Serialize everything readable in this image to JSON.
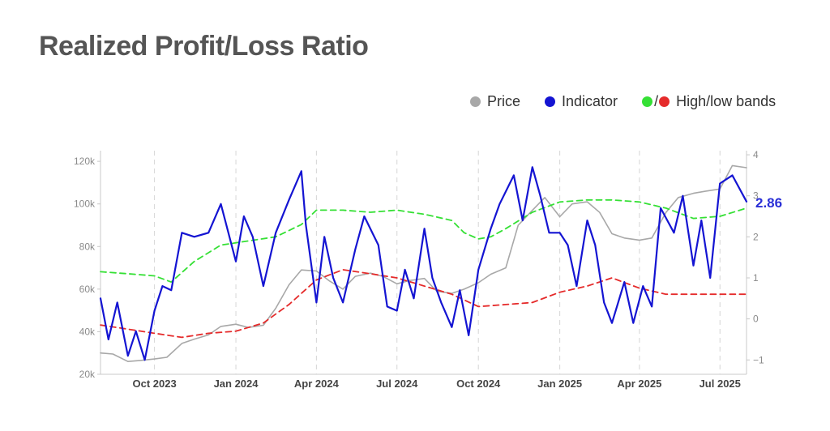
{
  "title": "Realized Profit/Loss Ratio",
  "legend": {
    "price_label": "Price",
    "indicator_label": "Indicator",
    "bands_label": "High/low bands"
  },
  "colors": {
    "price": "#a8a8a8",
    "indicator": "#1414d2",
    "high_band": "#35e035",
    "low_band": "#e52b2b",
    "last_value": "#2a2fd6"
  },
  "chart_data": {
    "type": "line",
    "title": "Realized Profit/Loss Ratio",
    "x_range": [
      "2023-08-01",
      "2025-07-31"
    ],
    "x_ticks": [
      {
        "label": "Oct 2023",
        "date": "2023-10-01"
      },
      {
        "label": "Jan 2024",
        "date": "2024-01-01"
      },
      {
        "label": "Apr 2024",
        "date": "2024-04-01"
      },
      {
        "label": "Jul 2024",
        "date": "2024-07-01"
      },
      {
        "label": "Oct 2024",
        "date": "2024-10-01"
      },
      {
        "label": "Jan 2025",
        "date": "2025-01-01"
      },
      {
        "label": "Apr 2025",
        "date": "2025-04-01"
      },
      {
        "label": "Jul 2025",
        "date": "2025-07-01"
      }
    ],
    "y_left": {
      "ticks": [
        "20k",
        "40k",
        "60k",
        "80k",
        "100k",
        "120k"
      ],
      "values": [
        20000,
        40000,
        60000,
        80000,
        100000,
        120000
      ],
      "range": [
        20000,
        125000
      ]
    },
    "y_right": {
      "ticks": [
        "−1",
        "0",
        "1",
        "2",
        "3",
        "4"
      ],
      "values": [
        -1,
        0,
        1,
        2,
        3,
        4
      ],
      "range": [
        -1.35,
        4.1
      ]
    },
    "grid": "vertical dashed at x ticks",
    "legend_position": "top-right",
    "last_value_label": "2.86",
    "series": [
      {
        "name": "Price",
        "axis": "left",
        "points": [
          [
            "2023-08-01",
            30000
          ],
          [
            "2023-08-15",
            29500
          ],
          [
            "2023-09-01",
            26000
          ],
          [
            "2023-09-15",
            26500
          ],
          [
            "2023-10-01",
            27200
          ],
          [
            "2023-10-15",
            28000
          ],
          [
            "2023-11-01",
            34500
          ],
          [
            "2023-11-15",
            36500
          ],
          [
            "2023-12-01",
            38500
          ],
          [
            "2023-12-15",
            42500
          ],
          [
            "2024-01-01",
            43500
          ],
          [
            "2024-01-15",
            42000
          ],
          [
            "2024-02-01",
            43000
          ],
          [
            "2024-02-15",
            51000
          ],
          [
            "2024-03-01",
            62000
          ],
          [
            "2024-03-15",
            69000
          ],
          [
            "2024-04-01",
            68500
          ],
          [
            "2024-04-15",
            64000
          ],
          [
            "2024-05-01",
            60000
          ],
          [
            "2024-05-15",
            66000
          ],
          [
            "2024-06-01",
            67500
          ],
          [
            "2024-06-15",
            66000
          ],
          [
            "2024-07-01",
            62500
          ],
          [
            "2024-07-15",
            64000
          ],
          [
            "2024-08-01",
            65000
          ],
          [
            "2024-08-15",
            59000
          ],
          [
            "2024-09-01",
            58000
          ],
          [
            "2024-09-15",
            60000
          ],
          [
            "2024-10-01",
            63000
          ],
          [
            "2024-10-15",
            67000
          ],
          [
            "2024-11-01",
            70000
          ],
          [
            "2024-11-15",
            90000
          ],
          [
            "2024-12-01",
            97000
          ],
          [
            "2024-12-15",
            103000
          ],
          [
            "2025-01-01",
            94000
          ],
          [
            "2025-01-15",
            100000
          ],
          [
            "2025-02-01",
            101000
          ],
          [
            "2025-02-15",
            96000
          ],
          [
            "2025-03-01",
            86000
          ],
          [
            "2025-03-15",
            84000
          ],
          [
            "2025-04-01",
            83000
          ],
          [
            "2025-04-15",
            84000
          ],
          [
            "2025-05-01",
            96000
          ],
          [
            "2025-05-15",
            103000
          ],
          [
            "2025-06-01",
            105000
          ],
          [
            "2025-06-15",
            106000
          ],
          [
            "2025-07-01",
            107000
          ],
          [
            "2025-07-15",
            118000
          ],
          [
            "2025-07-31",
            117000
          ]
        ]
      },
      {
        "name": "Indicator",
        "axis": "right",
        "points": [
          [
            "2023-08-01",
            0.5
          ],
          [
            "2023-08-10",
            -0.5
          ],
          [
            "2023-08-20",
            0.4
          ],
          [
            "2023-09-01",
            -0.9
          ],
          [
            "2023-09-10",
            -0.3
          ],
          [
            "2023-09-20",
            -1.0
          ],
          [
            "2023-10-01",
            0.2
          ],
          [
            "2023-10-10",
            0.8
          ],
          [
            "2023-10-20",
            0.7
          ],
          [
            "2023-11-01",
            2.1
          ],
          [
            "2023-11-15",
            2.0
          ],
          [
            "2023-12-01",
            2.1
          ],
          [
            "2023-12-15",
            2.8
          ],
          [
            "2024-01-01",
            1.4
          ],
          [
            "2024-01-10",
            2.5
          ],
          [
            "2024-01-20",
            2.0
          ],
          [
            "2024-02-01",
            0.8
          ],
          [
            "2024-02-15",
            2.1
          ],
          [
            "2024-03-01",
            2.9
          ],
          [
            "2024-03-15",
            3.6
          ],
          [
            "2024-03-20",
            2.3
          ],
          [
            "2024-04-01",
            0.4
          ],
          [
            "2024-04-10",
            2.0
          ],
          [
            "2024-04-20",
            1.0
          ],
          [
            "2024-05-01",
            0.4
          ],
          [
            "2024-05-15",
            1.7
          ],
          [
            "2024-05-25",
            2.5
          ],
          [
            "2024-06-10",
            1.8
          ],
          [
            "2024-06-20",
            0.3
          ],
          [
            "2024-07-01",
            0.2
          ],
          [
            "2024-07-10",
            1.2
          ],
          [
            "2024-07-20",
            0.5
          ],
          [
            "2024-08-01",
            2.2
          ],
          [
            "2024-08-10",
            1.0
          ],
          [
            "2024-08-20",
            0.4
          ],
          [
            "2024-09-01",
            -0.2
          ],
          [
            "2024-09-10",
            0.7
          ],
          [
            "2024-09-20",
            -0.4
          ],
          [
            "2024-10-01",
            1.2
          ],
          [
            "2024-10-15",
            2.2
          ],
          [
            "2024-10-25",
            2.8
          ],
          [
            "2024-11-10",
            3.5
          ],
          [
            "2024-11-20",
            2.4
          ],
          [
            "2024-12-01",
            3.7
          ],
          [
            "2024-12-10",
            3.0
          ],
          [
            "2024-12-20",
            2.1
          ],
          [
            "2025-01-01",
            2.1
          ],
          [
            "2025-01-10",
            1.8
          ],
          [
            "2025-01-20",
            0.8
          ],
          [
            "2025-02-01",
            2.4
          ],
          [
            "2025-02-10",
            1.8
          ],
          [
            "2025-02-20",
            0.4
          ],
          [
            "2025-03-01",
            -0.1
          ],
          [
            "2025-03-15",
            0.9
          ],
          [
            "2025-03-25",
            -0.1
          ],
          [
            "2025-04-05",
            0.8
          ],
          [
            "2025-04-15",
            0.3
          ],
          [
            "2025-04-25",
            2.7
          ],
          [
            "2025-05-10",
            2.1
          ],
          [
            "2025-05-20",
            3.0
          ],
          [
            "2025-06-01",
            1.3
          ],
          [
            "2025-06-10",
            2.4
          ],
          [
            "2025-06-20",
            1.0
          ],
          [
            "2025-07-01",
            3.3
          ],
          [
            "2025-07-15",
            3.5
          ],
          [
            "2025-07-31",
            2.86
          ]
        ]
      },
      {
        "name": "High band",
        "axis": "right",
        "points": [
          [
            "2023-08-01",
            1.15
          ],
          [
            "2023-09-01",
            1.1
          ],
          [
            "2023-10-01",
            1.05
          ],
          [
            "2023-10-20",
            0.9
          ],
          [
            "2023-11-15",
            1.4
          ],
          [
            "2023-12-15",
            1.8
          ],
          [
            "2024-01-15",
            1.9
          ],
          [
            "2024-02-15",
            2.0
          ],
          [
            "2024-03-15",
            2.3
          ],
          [
            "2024-04-01",
            2.65
          ],
          [
            "2024-05-01",
            2.65
          ],
          [
            "2024-06-01",
            2.6
          ],
          [
            "2024-07-01",
            2.65
          ],
          [
            "2024-08-01",
            2.55
          ],
          [
            "2024-09-01",
            2.4
          ],
          [
            "2024-09-15",
            2.1
          ],
          [
            "2024-10-01",
            1.95
          ],
          [
            "2024-10-15",
            2.0
          ],
          [
            "2024-11-01",
            2.2
          ],
          [
            "2024-12-01",
            2.6
          ],
          [
            "2025-01-01",
            2.85
          ],
          [
            "2025-02-01",
            2.9
          ],
          [
            "2025-03-01",
            2.9
          ],
          [
            "2025-04-01",
            2.85
          ],
          [
            "2025-05-01",
            2.7
          ],
          [
            "2025-06-01",
            2.45
          ],
          [
            "2025-07-01",
            2.5
          ],
          [
            "2025-07-31",
            2.7
          ]
        ]
      },
      {
        "name": "Low band",
        "axis": "right",
        "points": [
          [
            "2023-08-01",
            -0.15
          ],
          [
            "2023-09-01",
            -0.25
          ],
          [
            "2023-10-01",
            -0.35
          ],
          [
            "2023-11-01",
            -0.45
          ],
          [
            "2023-12-01",
            -0.35
          ],
          [
            "2024-01-01",
            -0.3
          ],
          [
            "2024-02-01",
            -0.1
          ],
          [
            "2024-03-01",
            0.35
          ],
          [
            "2024-04-01",
            0.95
          ],
          [
            "2024-05-01",
            1.2
          ],
          [
            "2024-06-01",
            1.1
          ],
          [
            "2024-07-01",
            1.0
          ],
          [
            "2024-08-01",
            0.8
          ],
          [
            "2024-09-01",
            0.6
          ],
          [
            "2024-10-01",
            0.3
          ],
          [
            "2024-11-01",
            0.35
          ],
          [
            "2024-12-01",
            0.4
          ],
          [
            "2025-01-01",
            0.65
          ],
          [
            "2025-02-01",
            0.8
          ],
          [
            "2025-03-01",
            1.0
          ],
          [
            "2025-04-01",
            0.75
          ],
          [
            "2025-05-01",
            0.6
          ],
          [
            "2025-06-01",
            0.6
          ],
          [
            "2025-07-31",
            0.6
          ]
        ]
      }
    ]
  }
}
